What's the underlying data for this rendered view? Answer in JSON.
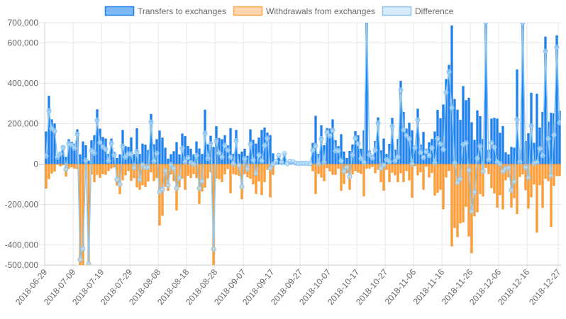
{
  "chart_data": {
    "type": "bar",
    "title": "",
    "xlabel": "",
    "ylabel": "",
    "ylim": [
      -500000,
      700000
    ],
    "values_unit_multiplier": 1000,
    "start_date": "2018-06-29",
    "grid": true,
    "legend_position": "top",
    "y_ticks": [
      {
        "value": 700000,
        "label": "700,000"
      },
      {
        "value": 600000,
        "label": "600,000"
      },
      {
        "value": 400000,
        "label": "400,000"
      },
      {
        "value": 200000,
        "label": "200,000"
      },
      {
        "value": 0,
        "label": "0"
      },
      {
        "value": -200000,
        "label": "-200,000"
      },
      {
        "value": -400000,
        "label": "-400,000"
      },
      {
        "value": -500000,
        "label": "-500,000"
      }
    ],
    "x_ticks": [
      {
        "day": 0,
        "label": "2018-06-29"
      },
      {
        "day": 10,
        "label": "2018-07-09"
      },
      {
        "day": 20,
        "label": "2018-07-19"
      },
      {
        "day": 30,
        "label": "2018-07-29"
      },
      {
        "day": 40,
        "label": "2018-08-08"
      },
      {
        "day": 50,
        "label": "2018-08-18"
      },
      {
        "day": 60,
        "label": "2018-08-28"
      },
      {
        "day": 70,
        "label": "2018-09-07"
      },
      {
        "day": 80,
        "label": "2018-09-17"
      },
      {
        "day": 90,
        "label": "2018-09-27"
      },
      {
        "day": 100,
        "label": "2018-10-07"
      },
      {
        "day": 110,
        "label": "2018-10-17"
      },
      {
        "day": 120,
        "label": "2018-10-27"
      },
      {
        "day": 130,
        "label": "2018-11-06"
      },
      {
        "day": 140,
        "label": "2018-11-16"
      },
      {
        "day": 150,
        "label": "2018-11-26"
      },
      {
        "day": 160,
        "label": "2018-12-06"
      },
      {
        "day": 170,
        "label": "2018-12-16"
      },
      {
        "day": 181,
        "label": "2018-12-27"
      }
    ],
    "series": [
      {
        "name": "Transfers to exchanges",
        "kind": "bar",
        "color": "#1a84f2",
        "border": "#0f6fdc",
        "legend_fill": "#7fb8f6",
        "values": [
          160,
          337,
          220,
          200,
          37,
          60,
          88,
          34,
          122,
          110,
          100,
          171,
          47,
          111,
          92,
          16,
          117,
          142,
          270,
          174,
          133,
          125,
          49,
          125,
          60,
          29,
          47,
          168,
          88,
          84,
          131,
          49,
          176,
          49,
          100,
          95,
          69,
          247,
          97,
          122,
          165,
          130,
          80,
          26,
          48,
          63,
          108,
          47,
          150,
          137,
          88,
          75,
          47,
          111,
          76,
          49,
          268,
          97,
          139,
          84,
          186,
          128,
          122,
          142,
          92,
          177,
          50,
          168,
          49,
          61,
          75,
          40,
          171,
          119,
          100,
          130,
          168,
          180,
          155,
          142,
          52,
          14,
          43,
          8,
          52,
          2,
          14,
          12,
          5,
          3,
          4,
          4,
          3,
          2,
          104,
          238,
          49,
          191,
          92,
          177,
          175,
          220,
          117,
          88,
          147,
          61,
          29,
          64,
          96,
          162,
          142,
          75,
          166,
          760,
          67,
          43,
          113,
          230,
          67,
          125,
          49,
          99,
          228,
          70,
          123,
          411,
          257,
          175,
          204,
          166,
          90,
          273,
          96,
          158,
          75,
          107,
          123,
          160,
          267,
          226,
          294,
          420,
          490,
          685,
          321,
          268,
          218,
          385,
          315,
          327,
          206,
          119,
          265,
          236,
          123,
          720,
          70,
          224,
          228,
          224,
          154,
          187,
          57,
          47,
          84,
          80,
          467,
          72,
          750,
          113,
          152,
          352,
          104,
          347,
          180,
          257,
          630,
          209,
          253,
          250,
          636,
          263
        ]
      },
      {
        "name": "Withdrawals from exchanges",
        "kind": "bar",
        "color": "#ff9f33",
        "border": "#f08a1c",
        "legend_fill": "#ffd6ad",
        "values": [
          -120,
          -73,
          -45,
          -36,
          -2,
          -10,
          -5,
          -60,
          -21,
          -15,
          -21,
          -23,
          -520,
          -530,
          -73,
          -510,
          -50,
          -88,
          -52,
          -67,
          -48,
          -52,
          -33,
          -21,
          -15,
          -105,
          -147,
          -79,
          -54,
          -33,
          -82,
          -68,
          -114,
          -126,
          -103,
          -112,
          -85,
          -39,
          -83,
          -68,
          -303,
          -255,
          -112,
          -131,
          -50,
          -83,
          -228,
          -114,
          -71,
          -126,
          -56,
          -68,
          -48,
          -68,
          -196,
          -134,
          -115,
          -69,
          -39,
          -505,
          -70,
          -73,
          -88,
          -50,
          -23,
          -143,
          -48,
          -52,
          -56,
          -173,
          -48,
          -64,
          -71,
          -99,
          -146,
          -85,
          -152,
          -88,
          -27,
          -163,
          -52,
          0,
          0,
          0,
          0,
          0,
          0,
          0,
          0,
          0,
          0,
          0,
          0,
          0,
          -34,
          -147,
          -47,
          -65,
          -83,
          -18,
          -35,
          -52,
          -52,
          -21,
          -131,
          -97,
          -44,
          -126,
          -50,
          -33,
          -41,
          -47,
          -158,
          -21,
          -21,
          -13,
          -44,
          -27,
          -88,
          -130,
          -27,
          -88,
          -41,
          -54,
          -88,
          -44,
          -88,
          -33,
          -79,
          -165,
          -9,
          -54,
          -39,
          -126,
          -12,
          -65,
          -42,
          -154,
          -140,
          -126,
          -222,
          -65,
          -33,
          -406,
          -315,
          -360,
          -292,
          -287,
          -210,
          -357,
          -440,
          -257,
          -237,
          -147,
          -159,
          -18,
          -48,
          -118,
          -144,
          -214,
          -152,
          -223,
          -79,
          -64,
          -214,
          -167,
          -246,
          -62,
          -50,
          -128,
          -219,
          -163,
          -100,
          -338,
          -103,
          -215,
          -71,
          -83,
          -310,
          -106,
          -58,
          -58
        ]
      },
      {
        "name": "Difference",
        "kind": "line",
        "color": "#8cc8f2",
        "legend_fill": "#d8ebfb",
        "derived": "Transfers to exchanges + Withdrawals from exchanges"
      }
    ]
  }
}
